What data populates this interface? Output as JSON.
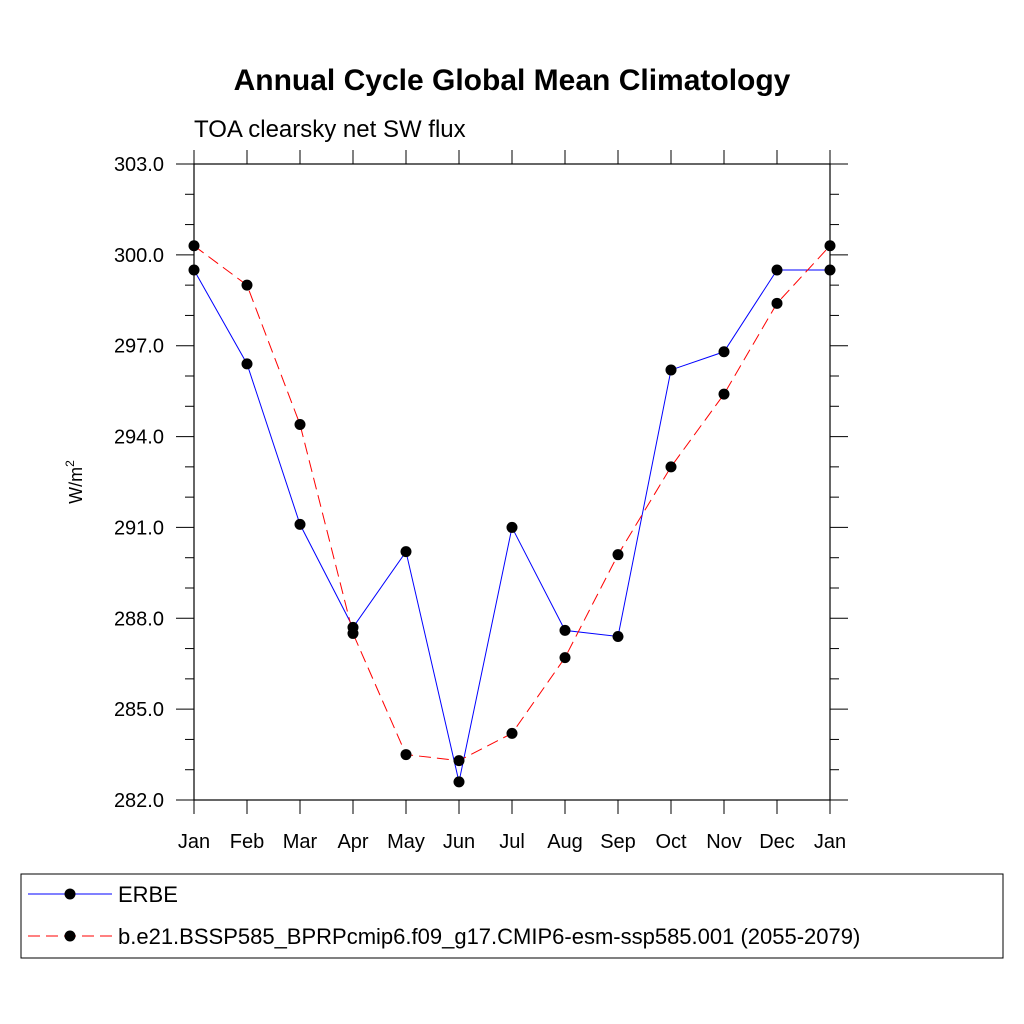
{
  "chart_data": {
    "type": "line",
    "title": "Annual Cycle Global Mean Climatology",
    "subtitle": "TOA clearsky net SW flux",
    "ylabel": "W/m",
    "ylabel_superscript": "2",
    "ylim": [
      282.0,
      303.0
    ],
    "yticks": [
      "303.0",
      "300.0",
      "297.0",
      "294.0",
      "291.0",
      "288.0",
      "285.0",
      "282.0"
    ],
    "ytick_values": [
      303,
      300,
      297,
      294,
      291,
      288,
      285,
      282
    ],
    "categories": [
      "Jan",
      "Feb",
      "Mar",
      "Apr",
      "May",
      "Jun",
      "Jul",
      "Aug",
      "Sep",
      "Oct",
      "Nov",
      "Dec",
      "Jan"
    ],
    "grid": false,
    "legend_position": "bottom",
    "series": [
      {
        "name": "ERBE",
        "color": "#0000ff",
        "line_style": "solid",
        "values": [
          299.5,
          296.4,
          291.1,
          287.7,
          290.2,
          282.6,
          291.0,
          287.6,
          287.4,
          296.2,
          296.8,
          299.5,
          299.5
        ]
      },
      {
        "name": "b.e21.BSSP585_BPRPcmip6.f09_g17.CMIP6-esm-ssp585.001 (2055-2079)",
        "color": "#ff0000",
        "line_style": "dashed",
        "values": [
          300.3,
          299.0,
          294.4,
          287.5,
          283.5,
          283.3,
          284.2,
          286.7,
          290.1,
          293.0,
          295.4,
          298.4,
          300.3
        ]
      }
    ]
  }
}
